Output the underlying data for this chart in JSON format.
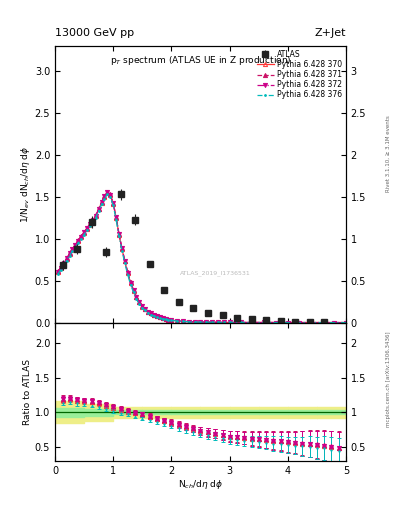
{
  "title_top": "13000 GeV pp",
  "title_right": "Z+Jet",
  "plot_title": "p_{T} spectrum (ATLAS UE in Z production)",
  "ylabel_main": "1/N_{ev} dN_{ch}/dη dφ",
  "ylabel_ratio": "Ratio to ATLAS",
  "xlabel": "N_{ch}/dη dφ",
  "right_label_main": "Rivet 3.1.10, ≥ 3.1M events",
  "right_label_ratio": "mcplots.cern.ch [arXiv:1306.3436]",
  "watermark": "ATLAS_2019_I1736531",
  "ylim_main": [
    0.0,
    3.3
  ],
  "ylim_ratio": [
    0.3,
    2.3
  ],
  "xlim": [
    0.0,
    5.0
  ],
  "yticks_main": [
    0.0,
    0.5,
    1.0,
    1.5,
    2.0,
    2.5,
    3.0
  ],
  "yticks_ratio": [
    0.5,
    1.0,
    1.5,
    2.0
  ],
  "xticks": [
    0,
    1,
    2,
    3,
    4,
    5
  ],
  "atlas_x": [
    0.13,
    0.38,
    0.63,
    0.88,
    1.13,
    1.38,
    1.63,
    1.88,
    2.13,
    2.38,
    2.63,
    2.88,
    3.13,
    3.38,
    3.63,
    3.88,
    4.13,
    4.38,
    4.63
  ],
  "atlas_y": [
    0.69,
    0.88,
    1.2,
    0.84,
    1.53,
    1.23,
    0.7,
    0.39,
    0.25,
    0.17,
    0.12,
    0.085,
    0.06,
    0.04,
    0.025,
    0.016,
    0.01,
    0.007,
    0.004
  ],
  "atlas_err": [
    0.06,
    0.06,
    0.07,
    0.06,
    0.07,
    0.06,
    0.04,
    0.03,
    0.02,
    0.015,
    0.01,
    0.007,
    0.005,
    0.004,
    0.003,
    0.002,
    0.002,
    0.001,
    0.001
  ],
  "py_x": [
    0.05,
    0.1,
    0.15,
    0.2,
    0.25,
    0.3,
    0.35,
    0.4,
    0.45,
    0.5,
    0.55,
    0.6,
    0.65,
    0.7,
    0.75,
    0.8,
    0.85,
    0.9,
    0.95,
    1.0,
    1.05,
    1.1,
    1.15,
    1.2,
    1.25,
    1.3,
    1.35,
    1.4,
    1.45,
    1.5,
    1.55,
    1.6,
    1.65,
    1.7,
    1.75,
    1.8,
    1.85,
    1.9,
    1.95,
    2.0,
    2.1,
    2.2,
    2.3,
    2.4,
    2.5,
    2.6,
    2.7,
    2.8,
    2.9,
    3.0,
    3.2,
    3.4,
    3.6,
    3.8,
    4.0,
    4.2,
    4.4,
    4.6,
    4.8,
    5.0
  ],
  "py370_y": [
    0.6,
    0.65,
    0.7,
    0.76,
    0.82,
    0.87,
    0.92,
    0.97,
    1.02,
    1.07,
    1.12,
    1.17,
    1.22,
    1.27,
    1.35,
    1.43,
    1.5,
    1.55,
    1.52,
    1.42,
    1.25,
    1.05,
    0.88,
    0.73,
    0.59,
    0.47,
    0.38,
    0.3,
    0.24,
    0.19,
    0.16,
    0.13,
    0.11,
    0.09,
    0.075,
    0.063,
    0.052,
    0.043,
    0.036,
    0.03,
    0.021,
    0.015,
    0.011,
    0.008,
    0.006,
    0.005,
    0.004,
    0.003,
    0.002,
    0.002,
    0.001,
    0.001,
    0.001,
    0.0005,
    0.0004,
    0.0003,
    0.0002,
    0.0002,
    0.0001,
    0.0001
  ],
  "py371_y": [
    0.61,
    0.66,
    0.71,
    0.77,
    0.83,
    0.88,
    0.93,
    0.98,
    1.03,
    1.08,
    1.13,
    1.18,
    1.23,
    1.28,
    1.36,
    1.44,
    1.51,
    1.56,
    1.53,
    1.43,
    1.26,
    1.06,
    0.89,
    0.74,
    0.6,
    0.48,
    0.39,
    0.31,
    0.25,
    0.2,
    0.16,
    0.13,
    0.11,
    0.09,
    0.075,
    0.063,
    0.052,
    0.043,
    0.036,
    0.03,
    0.021,
    0.015,
    0.011,
    0.008,
    0.006,
    0.005,
    0.004,
    0.003,
    0.002,
    0.002,
    0.001,
    0.001,
    0.001,
    0.0005,
    0.0004,
    0.0003,
    0.0002,
    0.0002,
    0.0001,
    0.0001
  ],
  "py372_y": [
    0.605,
    0.655,
    0.705,
    0.765,
    0.825,
    0.875,
    0.925,
    0.975,
    1.025,
    1.075,
    1.125,
    1.175,
    1.225,
    1.275,
    1.355,
    1.435,
    1.505,
    1.555,
    1.525,
    1.425,
    1.255,
    1.055,
    0.885,
    0.735,
    0.595,
    0.475,
    0.385,
    0.305,
    0.245,
    0.195,
    0.16,
    0.13,
    0.11,
    0.09,
    0.075,
    0.063,
    0.052,
    0.043,
    0.036,
    0.03,
    0.021,
    0.015,
    0.011,
    0.008,
    0.006,
    0.005,
    0.004,
    0.003,
    0.002,
    0.002,
    0.001,
    0.001,
    0.001,
    0.0005,
    0.0004,
    0.0003,
    0.0002,
    0.0002,
    0.0001,
    0.0001
  ],
  "py376_y": [
    0.58,
    0.63,
    0.68,
    0.74,
    0.8,
    0.85,
    0.9,
    0.95,
    1.0,
    1.05,
    1.1,
    1.15,
    1.2,
    1.25,
    1.33,
    1.41,
    1.48,
    1.53,
    1.5,
    1.4,
    1.23,
    1.03,
    0.86,
    0.71,
    0.57,
    0.45,
    0.36,
    0.28,
    0.22,
    0.175,
    0.145,
    0.115,
    0.095,
    0.078,
    0.065,
    0.054,
    0.044,
    0.037,
    0.031,
    0.026,
    0.018,
    0.013,
    0.009,
    0.007,
    0.005,
    0.004,
    0.003,
    0.0025,
    0.002,
    0.0015,
    0.001,
    0.0008,
    0.0006,
    0.0004,
    0.0003,
    0.0002,
    0.0002,
    0.0001,
    0.0001,
    5e-05
  ],
  "ratio_x": [
    0.13,
    0.25,
    0.38,
    0.5,
    0.63,
    0.75,
    0.88,
    1.0,
    1.13,
    1.25,
    1.38,
    1.5,
    1.63,
    1.75,
    1.88,
    2.0,
    2.13,
    2.25,
    2.38,
    2.5,
    2.63,
    2.75,
    2.88,
    3.0,
    3.13,
    3.25,
    3.38,
    3.5,
    3.63,
    3.75,
    3.88,
    4.0,
    4.13,
    4.25,
    4.38,
    4.5,
    4.63,
    4.75,
    4.88
  ],
  "ratio370_y": [
    1.18,
    1.19,
    1.17,
    1.16,
    1.15,
    1.13,
    1.1,
    1.07,
    1.04,
    1.01,
    0.99,
    0.97,
    0.94,
    0.91,
    0.88,
    0.85,
    0.82,
    0.79,
    0.76,
    0.73,
    0.71,
    0.69,
    0.67,
    0.65,
    0.64,
    0.63,
    0.62,
    0.61,
    0.6,
    0.59,
    0.58,
    0.57,
    0.56,
    0.55,
    0.54,
    0.53,
    0.52,
    0.5,
    0.48
  ],
  "ratio371_y": [
    1.2,
    1.21,
    1.19,
    1.18,
    1.17,
    1.15,
    1.12,
    1.09,
    1.06,
    1.03,
    1.0,
    0.98,
    0.95,
    0.92,
    0.89,
    0.86,
    0.83,
    0.8,
    0.77,
    0.74,
    0.72,
    0.7,
    0.68,
    0.66,
    0.65,
    0.64,
    0.63,
    0.62,
    0.61,
    0.6,
    0.59,
    0.58,
    0.57,
    0.56,
    0.55,
    0.54,
    0.53,
    0.51,
    0.49
  ],
  "ratio372_y": [
    1.19,
    1.2,
    1.18,
    1.17,
    1.16,
    1.14,
    1.11,
    1.08,
    1.05,
    1.02,
    0.99,
    0.97,
    0.94,
    0.91,
    0.88,
    0.85,
    0.82,
    0.79,
    0.76,
    0.73,
    0.71,
    0.69,
    0.67,
    0.65,
    0.64,
    0.63,
    0.62,
    0.61,
    0.6,
    0.59,
    0.58,
    0.57,
    0.56,
    0.55,
    0.54,
    0.53,
    0.52,
    0.5,
    0.48
  ],
  "ratio376_y": [
    1.14,
    1.15,
    1.13,
    1.12,
    1.1,
    1.08,
    1.05,
    1.02,
    0.99,
    0.97,
    0.94,
    0.91,
    0.89,
    0.86,
    0.83,
    0.8,
    0.77,
    0.74,
    0.72,
    0.69,
    0.67,
    0.65,
    0.63,
    0.61,
    0.6,
    0.59,
    0.58,
    0.57,
    0.56,
    0.55,
    0.54,
    0.53,
    0.52,
    0.51,
    0.5,
    0.49,
    0.48,
    0.46,
    0.44
  ],
  "ratio_err": [
    0.09,
    0.08,
    0.08,
    0.07,
    0.07,
    0.06,
    0.06,
    0.06,
    0.06,
    0.06,
    0.06,
    0.06,
    0.07,
    0.07,
    0.07,
    0.08,
    0.09,
    0.09,
    0.1,
    0.11,
    0.12,
    0.13,
    0.14,
    0.15,
    0.17,
    0.18,
    0.2,
    0.22,
    0.24,
    0.26,
    0.28,
    0.3,
    0.32,
    0.35,
    0.38,
    0.4,
    0.43,
    0.45,
    0.48
  ],
  "band_x_lo": [
    0.0,
    0.5,
    1.0,
    1.5,
    2.0,
    2.5,
    3.0,
    3.5,
    4.0,
    4.5
  ],
  "band_x_hi": [
    0.5,
    1.0,
    1.5,
    2.0,
    2.5,
    3.0,
    3.5,
    4.0,
    4.5,
    5.0
  ],
  "band_green_lo": [
    0.93,
    0.95,
    0.97,
    0.97,
    0.97,
    0.97,
    0.97,
    0.97,
    0.97,
    0.97
  ],
  "band_green_hi": [
    1.07,
    1.05,
    1.03,
    1.03,
    1.03,
    1.03,
    1.03,
    1.03,
    1.03,
    1.03
  ],
  "band_yellow_lo": [
    0.84,
    0.88,
    0.92,
    0.92,
    0.92,
    0.92,
    0.92,
    0.92,
    0.92,
    0.92
  ],
  "band_yellow_hi": [
    1.16,
    1.12,
    1.08,
    1.08,
    1.08,
    1.08,
    1.08,
    1.08,
    1.08,
    1.08
  ],
  "color_atlas": "#222222",
  "color_370": "#ff3333",
  "color_371": "#cc1166",
  "color_372": "#cc0088",
  "color_376": "#00bbbb",
  "color_band_green": "#99ee99",
  "color_band_yellow": "#eeee88",
  "legend_labels": [
    "ATLAS",
    "Pythia 6.428 370",
    "Pythia 6.428 371",
    "Pythia 6.428 372",
    "Pythia 6.428 376"
  ]
}
